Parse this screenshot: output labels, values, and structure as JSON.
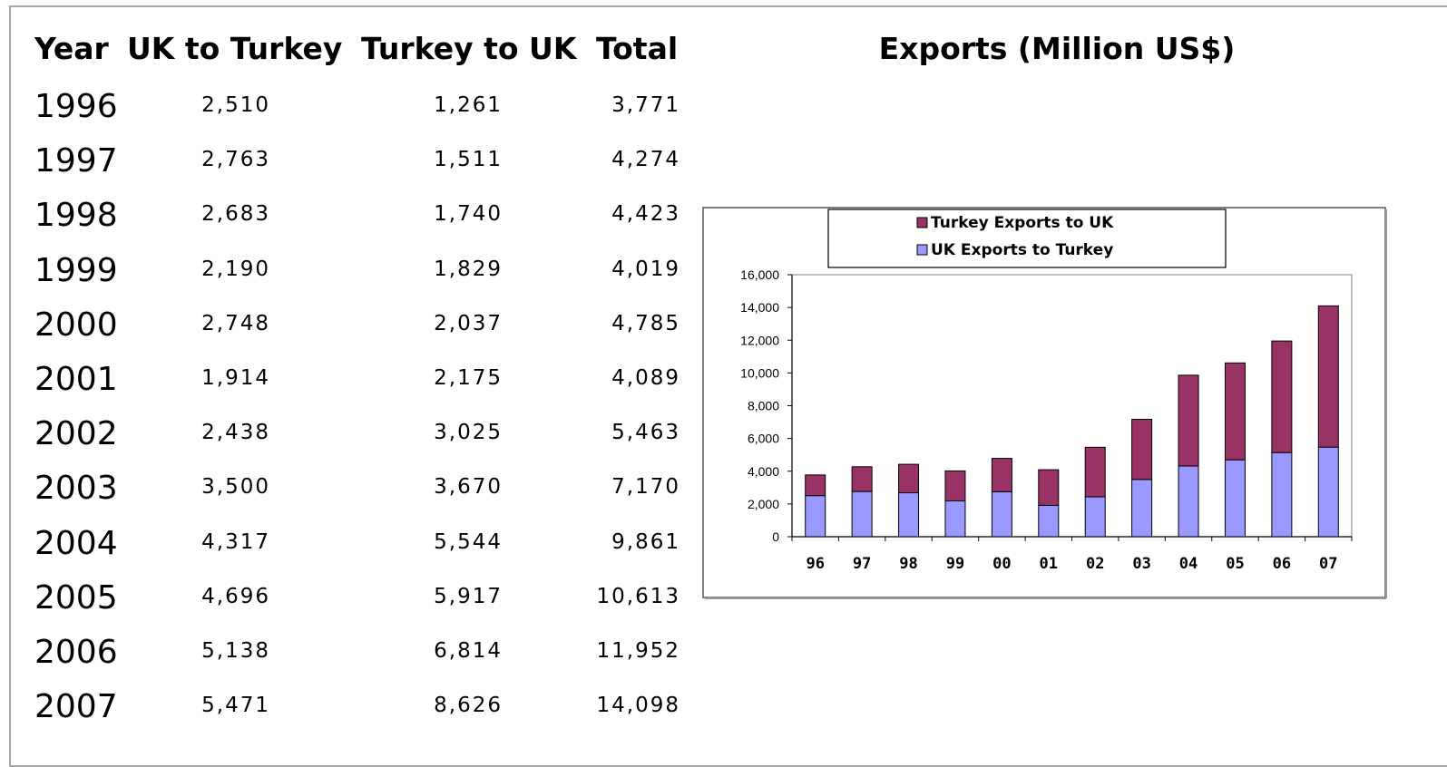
{
  "table": {
    "headers": [
      "Year",
      "UK to Turkey",
      "Turkey to UK",
      "Total"
    ],
    "rows": [
      [
        "1996",
        "2,510",
        "1,261",
        "3,771"
      ],
      [
        "1997",
        "2,763",
        "1,511",
        "4,274"
      ],
      [
        "1998",
        "2,683",
        "1,740",
        "4,423"
      ],
      [
        "1999",
        "2,190",
        "1,829",
        "4,019"
      ],
      [
        "2000",
        "2,748",
        "2,037",
        "4,785"
      ],
      [
        "2001",
        "1,914",
        "2,175",
        "4,089"
      ],
      [
        "2002",
        "2,438",
        "3,025",
        "5,463"
      ],
      [
        "2003",
        "3,500",
        "3,670",
        "7,170"
      ],
      [
        "2004",
        "4,317",
        "5,544",
        "9,861"
      ],
      [
        "2005",
        "4,696",
        "5,917",
        "10,613"
      ],
      [
        "2006",
        "5,138",
        "6,814",
        "11,952"
      ],
      [
        "2007",
        "5,471",
        "8,626",
        "14,098"
      ]
    ]
  },
  "chart_data": {
    "type": "bar",
    "stacked": true,
    "title": "Exports (Million US$)",
    "categories": [
      "96",
      "97",
      "98",
      "99",
      "00",
      "01",
      "02",
      "03",
      "04",
      "05",
      "06",
      "07"
    ],
    "series": [
      {
        "name": "UK Exports to Turkey",
        "color": "#9999ff",
        "values": [
          2510,
          2763,
          2683,
          2190,
          2748,
          1914,
          2438,
          3500,
          4317,
          4696,
          5138,
          5471
        ]
      },
      {
        "name": "Turkey Exports to UK",
        "color": "#993366",
        "values": [
          1261,
          1511,
          1740,
          1829,
          2037,
          2175,
          3025,
          3670,
          5544,
          5917,
          6814,
          8626
        ]
      }
    ],
    "legend_order": [
      "Turkey Exports to UK",
      "UK Exports to Turkey"
    ],
    "legend_position": "top",
    "ylim": [
      0,
      16000
    ],
    "yticks": [
      0,
      2000,
      4000,
      6000,
      8000,
      10000,
      12000,
      14000,
      16000
    ],
    "ytick_labels": [
      "0",
      "2,000",
      "4,000",
      "6,000",
      "8,000",
      "10,000",
      "12,000",
      "14,000",
      "16,000"
    ],
    "grid": false
  }
}
